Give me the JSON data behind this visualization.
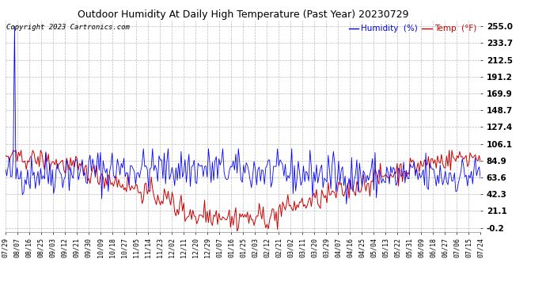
{
  "title": "Outdoor Humidity At Daily High Temperature (Past Year) 20230729",
  "copyright_text": "Copyright 2023 Cartronics.com",
  "legend_humidity": "Humidity  (%)",
  "legend_temp": "Temp  (°F)",
  "humidity_color": "#0000ff",
  "temp_color": "#cc0000",
  "background_color": "#ffffff",
  "grid_color": "#aaaaaa",
  "yticks": [
    -0.2,
    21.1,
    42.3,
    63.6,
    84.9,
    106.1,
    127.4,
    148.7,
    169.9,
    191.2,
    212.5,
    233.7,
    255.0
  ],
  "ylim": [
    -5.0,
    262.0
  ],
  "xtick_labels": [
    "07/29",
    "08/07",
    "08/16",
    "08/25",
    "09/03",
    "09/12",
    "09/21",
    "09/30",
    "10/09",
    "10/18",
    "10/27",
    "11/05",
    "11/14",
    "11/23",
    "12/02",
    "12/11",
    "12/20",
    "12/29",
    "01/07",
    "01/16",
    "01/25",
    "02/03",
    "02/12",
    "02/21",
    "03/02",
    "03/11",
    "03/20",
    "03/29",
    "04/07",
    "04/16",
    "04/25",
    "05/04",
    "05/13",
    "05/22",
    "05/31",
    "06/09",
    "06/18",
    "06/27",
    "07/06",
    "07/15",
    "07/24"
  ],
  "n_points": 366,
  "spike_index": 7,
  "spike_value": 255.0
}
